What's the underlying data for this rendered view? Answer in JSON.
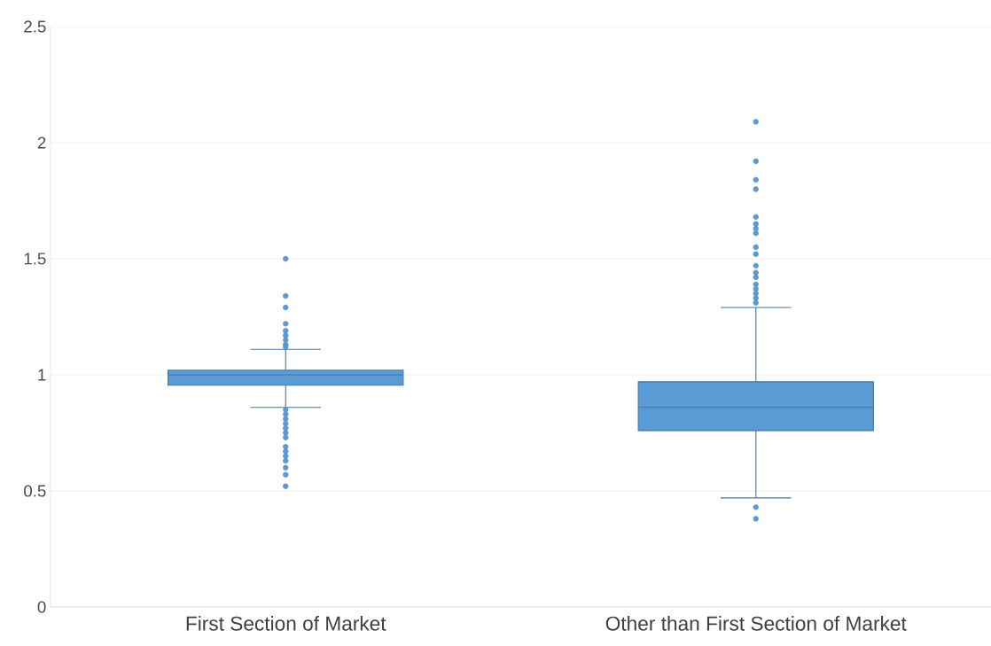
{
  "chart_data": {
    "type": "box",
    "categories": [
      "First Section of Market",
      "Other than First Section of Market"
    ],
    "boxes": [
      {
        "low": 0.86,
        "q1": 0.955,
        "median": 1.0,
        "q3": 1.02,
        "high": 1.11,
        "outliers": [
          1.5,
          1.34,
          1.29,
          1.22,
          1.19,
          1.17,
          1.15,
          1.13,
          1.12,
          0.85,
          0.83,
          0.81,
          0.79,
          0.77,
          0.75,
          0.73,
          0.69,
          0.67,
          0.65,
          0.63,
          0.6,
          0.57,
          0.52
        ]
      },
      {
        "low": 0.47,
        "q1": 0.76,
        "median": 0.86,
        "q3": 0.97,
        "high": 1.29,
        "outliers": [
          2.09,
          1.92,
          1.84,
          1.8,
          1.68,
          1.65,
          1.63,
          1.61,
          1.55,
          1.52,
          1.47,
          1.44,
          1.42,
          1.39,
          1.37,
          1.35,
          1.33,
          1.31,
          0.43,
          0.38
        ]
      }
    ],
    "color": "#5b9bd5",
    "ylim": [
      0,
      2.5
    ],
    "yticks": [
      0,
      0.5,
      1,
      1.5,
      2,
      2.5
    ],
    "grid": "y",
    "marker": "circle"
  }
}
